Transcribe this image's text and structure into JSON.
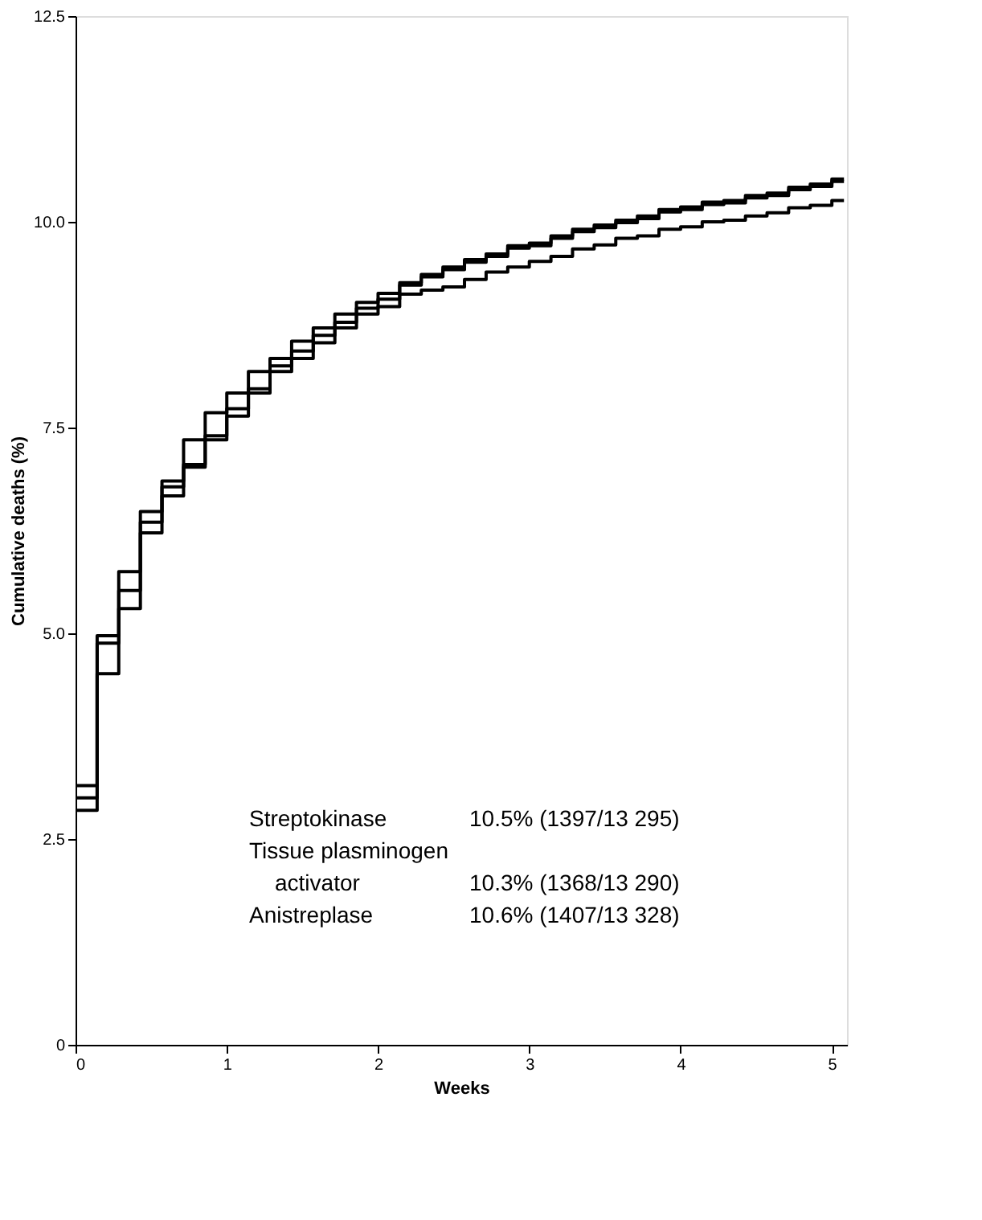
{
  "chart_data": {
    "type": "step",
    "xlabel": "Weeks",
    "ylabel": "Cumulative deaths (%)",
    "x": [
      0,
      0.1429,
      0.2857,
      0.4286,
      0.5714,
      0.7143,
      0.8571,
      1,
      1.1429,
      1.2857,
      1.4286,
      1.5714,
      1.7143,
      1.8571,
      2,
      2.1429,
      2.2857,
      2.4286,
      2.5714,
      2.7143,
      2.8571,
      3,
      3.1429,
      3.2857,
      3.4286,
      3.5714,
      3.7143,
      3.8571,
      4,
      4.1429,
      4.2857,
      4.4286,
      4.5714,
      4.7143,
      4.8571,
      5,
      5.08
    ],
    "series": [
      {
        "color": "#000000",
        "values": [
          3.15,
          4.97,
          5.75,
          6.48,
          6.85,
          7.35,
          7.68,
          7.92,
          8.18,
          8.34,
          8.55,
          8.71,
          8.88,
          9.02,
          9.13,
          9.26,
          9.36,
          9.45,
          9.54,
          9.61,
          9.71,
          9.74,
          9.83,
          9.91,
          9.96,
          10.02,
          10.07,
          10.15,
          10.18,
          10.24,
          10.26,
          10.32,
          10.35,
          10.42,
          10.46,
          10.52,
          10.52
        ]
      },
      {
        "color": "#000000",
        "values": [
          3.0,
          4.88,
          5.52,
          6.35,
          6.78,
          7.05,
          7.4,
          7.73,
          7.97,
          8.25,
          8.43,
          8.62,
          8.78,
          8.95,
          9.06,
          9.23,
          9.33,
          9.42,
          9.51,
          9.58,
          9.68,
          9.71,
          9.8,
          9.88,
          9.93,
          9.99,
          10.04,
          10.12,
          10.15,
          10.21,
          10.23,
          10.29,
          10.32,
          10.39,
          10.43,
          10.49,
          10.49
        ]
      },
      {
        "color": "#000000",
        "values": [
          2.85,
          4.51,
          5.3,
          6.22,
          6.67,
          7.02,
          7.35,
          7.64,
          7.92,
          8.18,
          8.34,
          8.53,
          8.71,
          8.88,
          8.97,
          9.12,
          9.17,
          9.21,
          9.3,
          9.39,
          9.45,
          9.52,
          9.58,
          9.67,
          9.72,
          9.8,
          9.83,
          9.91,
          9.94,
          10.0,
          10.02,
          10.07,
          10.11,
          10.17,
          10.2,
          10.26,
          10.26
        ]
      }
    ],
    "xlim": [
      0,
      5.1
    ],
    "xticks": [
      0,
      1,
      2,
      3,
      4,
      5
    ],
    "ylim": [
      0,
      12.5
    ],
    "yticks": [
      0,
      2.5,
      {
        "value": 5,
        "label": "5.0"
      },
      {
        "value": 7.5,
        "label": "7.5"
      },
      {
        "value": 10,
        "label": "10.0"
      },
      12.5
    ],
    "grid": false,
    "marker": "none",
    "line_style": "solid",
    "annotations": [
      "Streptokinase",
      "10.5% (1397/13 295)",
      "Tissue plasminogen",
      "activator",
      "10.3% (1368/13 290)",
      "Anistreplase",
      "10.6% (1407/13 328)"
    ]
  }
}
